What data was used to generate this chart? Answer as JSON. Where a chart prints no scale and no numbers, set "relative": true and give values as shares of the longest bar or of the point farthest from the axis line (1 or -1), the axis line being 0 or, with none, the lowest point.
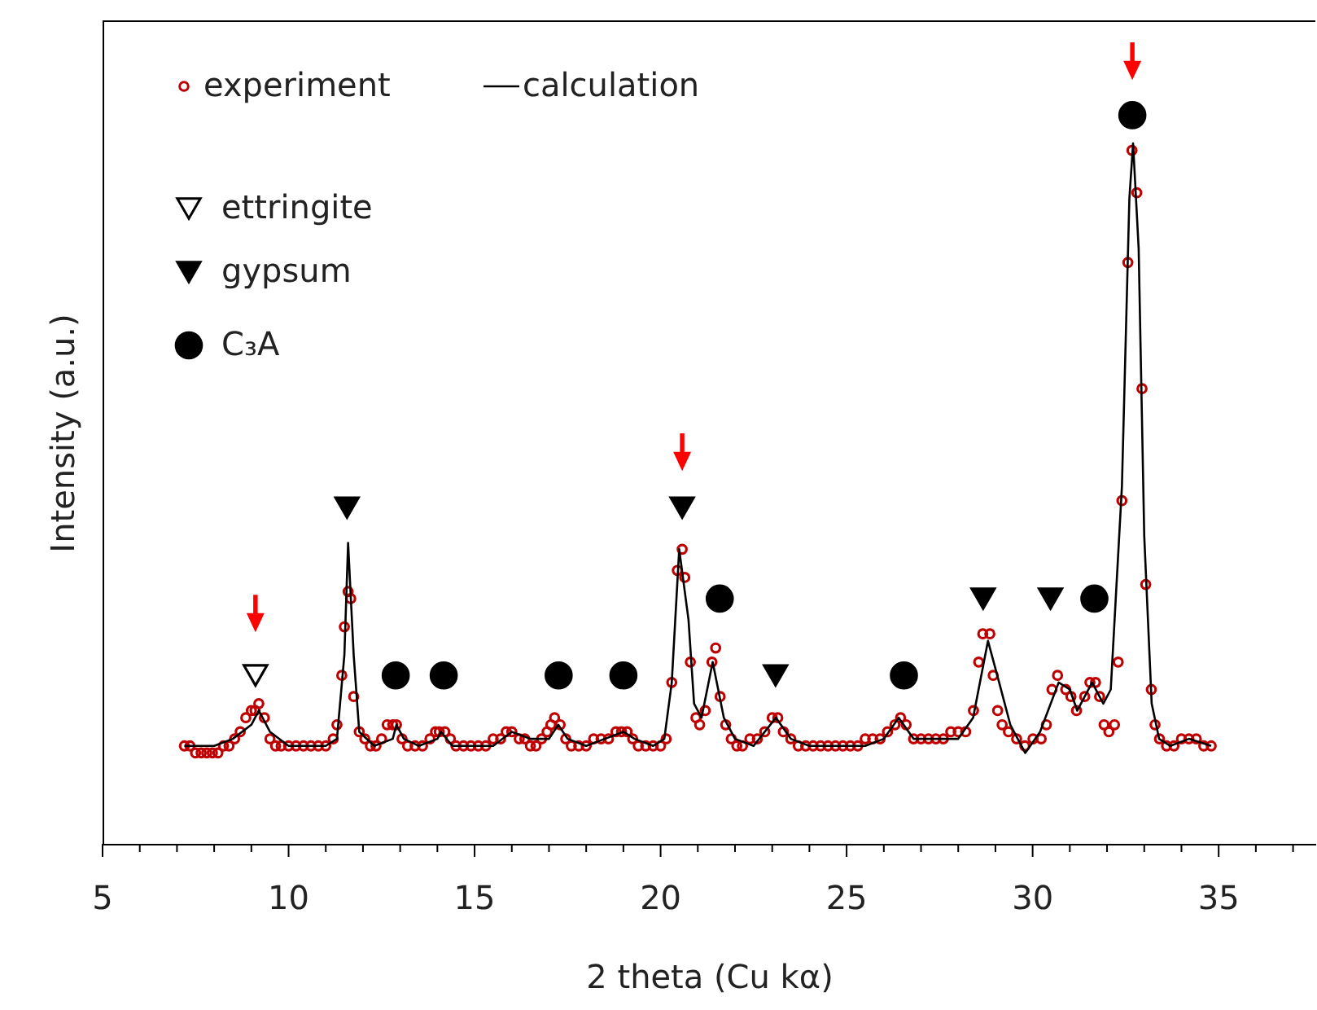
{
  "chart_data": {
    "type": "scatter",
    "relative": true,
    "xlabel": "2 theta (Cu kα)",
    "ylabel": "Intensity (a.u.)",
    "xlim": [
      5,
      37.6
    ],
    "xticks": [
      5,
      {
        "value": 6,
        "label": null
      },
      {
        "value": 7,
        "label": null
      },
      {
        "value": 8,
        "label": null
      },
      {
        "value": 9,
        "label": null
      },
      10,
      {
        "value": 11,
        "label": null
      },
      {
        "value": 12,
        "label": null
      },
      {
        "value": 13,
        "label": null
      },
      {
        "value": 14,
        "label": null
      },
      15,
      {
        "value": 16,
        "label": null
      },
      {
        "value": 17,
        "label": null
      },
      {
        "value": 18,
        "label": null
      },
      {
        "value": 19,
        "label": null
      },
      20,
      {
        "value": 21,
        "label": null
      },
      {
        "value": 22,
        "label": null
      },
      {
        "value": 23,
        "label": null
      },
      {
        "value": 24,
        "label": null
      },
      25,
      {
        "value": 26,
        "label": null
      },
      {
        "value": 27,
        "label": null
      },
      {
        "value": 28,
        "label": null
      },
      {
        "value": 29,
        "label": null
      },
      30,
      {
        "value": 31,
        "label": null
      },
      {
        "value": 32,
        "label": null
      },
      {
        "value": 33,
        "label": null
      },
      {
        "value": 34,
        "label": null
      },
      35,
      {
        "value": 36,
        "label": null
      },
      {
        "value": 37,
        "label": null
      }
    ],
    "tick_labels": "x",
    "grid": false,
    "legend": "top left",
    "series": [
      {
        "name": "experiment",
        "marker": "circle",
        "color": "#c00000",
        "x": [
          7.2,
          7.35,
          7.5,
          7.65,
          7.8,
          7.95,
          8.1,
          8.25,
          8.4,
          8.55,
          8.7,
          8.85,
          9.0,
          9.1,
          9.2,
          9.35,
          9.5,
          9.65,
          9.8,
          10.0,
          10.2,
          10.4,
          10.6,
          10.8,
          11.0,
          11.2,
          11.3,
          11.43,
          11.5,
          11.6,
          11.67,
          11.75,
          11.9,
          12.05,
          12.2,
          12.35,
          12.5,
          12.65,
          12.8,
          12.9,
          13.05,
          13.2,
          13.4,
          13.6,
          13.8,
          13.95,
          14.05,
          14.2,
          14.35,
          14.5,
          14.7,
          14.9,
          15.1,
          15.3,
          15.5,
          15.7,
          15.85,
          16.0,
          16.2,
          16.35,
          16.5,
          16.65,
          16.8,
          16.95,
          17.05,
          17.15,
          17.3,
          17.45,
          17.6,
          17.8,
          18.0,
          18.2,
          18.4,
          18.6,
          18.8,
          18.95,
          19.1,
          19.25,
          19.4,
          19.6,
          19.8,
          20.0,
          20.15,
          20.3,
          20.45,
          20.58,
          20.65,
          20.8,
          20.95,
          21.05,
          21.2,
          21.38,
          21.48,
          21.6,
          21.75,
          21.9,
          22.05,
          22.2,
          22.4,
          22.6,
          22.8,
          23.0,
          23.15,
          23.3,
          23.5,
          23.7,
          23.9,
          24.1,
          24.3,
          24.5,
          24.7,
          24.9,
          25.1,
          25.3,
          25.5,
          25.7,
          25.9,
          26.1,
          26.3,
          26.45,
          26.6,
          26.8,
          27.0,
          27.2,
          27.4,
          27.6,
          27.8,
          28.0,
          28.2,
          28.41,
          28.55,
          28.66,
          28.85,
          28.94,
          29.06,
          29.18,
          29.35,
          29.57,
          29.79,
          30.01,
          30.23,
          30.37,
          30.52,
          30.67,
          30.89,
          31.03,
          31.18,
          31.4,
          31.54,
          31.69,
          31.8,
          31.92,
          32.05,
          32.2,
          32.3,
          32.4,
          32.56,
          32.67,
          32.8,
          32.94,
          33.04,
          33.19,
          33.29,
          33.41,
          33.6,
          33.8,
          34.0,
          34.2,
          34.4,
          34.6,
          34.8
        ],
        "values": [
          0.125,
          0.125,
          0.116,
          0.116,
          0.116,
          0.116,
          0.116,
          0.125,
          0.125,
          0.134,
          0.143,
          0.161,
          0.17,
          0.17,
          0.179,
          0.161,
          0.134,
          0.125,
          0.125,
          0.125,
          0.125,
          0.125,
          0.125,
          0.125,
          0.125,
          0.134,
          0.152,
          0.215,
          0.277,
          0.322,
          0.313,
          0.188,
          0.143,
          0.134,
          0.125,
          0.125,
          0.134,
          0.152,
          0.152,
          0.152,
          0.134,
          0.125,
          0.125,
          0.125,
          0.134,
          0.143,
          0.143,
          0.143,
          0.134,
          0.125,
          0.125,
          0.125,
          0.125,
          0.125,
          0.134,
          0.134,
          0.143,
          0.143,
          0.134,
          0.134,
          0.125,
          0.125,
          0.134,
          0.143,
          0.152,
          0.161,
          0.152,
          0.134,
          0.125,
          0.125,
          0.125,
          0.134,
          0.134,
          0.134,
          0.143,
          0.143,
          0.143,
          0.134,
          0.125,
          0.125,
          0.125,
          0.125,
          0.134,
          0.206,
          0.349,
          0.376,
          0.34,
          0.232,
          0.161,
          0.152,
          0.17,
          0.232,
          0.25,
          0.188,
          0.152,
          0.134,
          0.125,
          0.125,
          0.134,
          0.134,
          0.143,
          0.161,
          0.161,
          0.143,
          0.134,
          0.125,
          0.125,
          0.125,
          0.125,
          0.125,
          0.125,
          0.125,
          0.125,
          0.125,
          0.134,
          0.134,
          0.134,
          0.143,
          0.152,
          0.161,
          0.152,
          0.134,
          0.134,
          0.134,
          0.134,
          0.134,
          0.143,
          0.143,
          0.143,
          0.17,
          0.232,
          0.268,
          0.268,
          0.215,
          0.17,
          0.152,
          0.143,
          0.134,
          0.125,
          0.134,
          0.134,
          0.152,
          0.197,
          0.215,
          0.197,
          0.188,
          0.17,
          0.188,
          0.206,
          0.206,
          0.188,
          0.152,
          0.143,
          0.152,
          0.232,
          0.438,
          0.742,
          0.885,
          0.831,
          0.581,
          0.331,
          0.197,
          0.152,
          0.134,
          0.125,
          0.125,
          0.134,
          0.134,
          0.134,
          0.125,
          0.125
        ]
      },
      {
        "name": "calculation",
        "type": "line",
        "marker": "none",
        "color": "#000000",
        "x": [
          7.2,
          8.0,
          8.5,
          9.0,
          9.2,
          9.5,
          10.0,
          11.0,
          11.3,
          11.5,
          11.6,
          11.75,
          11.9,
          12.3,
          12.8,
          12.9,
          13.1,
          13.5,
          14.0,
          14.1,
          14.4,
          15.0,
          15.5,
          16.0,
          16.5,
          17.0,
          17.25,
          17.5,
          18.0,
          18.5,
          19.0,
          19.3,
          19.8,
          20.1,
          20.3,
          20.5,
          20.75,
          20.9,
          21.1,
          21.4,
          21.7,
          22.0,
          22.5,
          23.1,
          23.5,
          24.0,
          25.0,
          25.5,
          26.0,
          26.4,
          26.8,
          27.5,
          28.0,
          28.4,
          28.8,
          29.1,
          29.4,
          29.8,
          30.2,
          30.7,
          31.0,
          31.2,
          31.6,
          31.9,
          32.1,
          32.4,
          32.6,
          32.7,
          32.85,
          33.0,
          33.2,
          33.4,
          33.7,
          34.2,
          34.8
        ],
        "values": [
          0.125,
          0.125,
          0.134,
          0.152,
          0.17,
          0.143,
          0.125,
          0.125,
          0.134,
          0.241,
          0.384,
          0.241,
          0.143,
          0.125,
          0.134,
          0.152,
          0.134,
          0.125,
          0.134,
          0.143,
          0.125,
          0.125,
          0.125,
          0.143,
          0.134,
          0.134,
          0.152,
          0.134,
          0.125,
          0.134,
          0.143,
          0.134,
          0.125,
          0.134,
          0.206,
          0.376,
          0.286,
          0.179,
          0.161,
          0.232,
          0.161,
          0.134,
          0.125,
          0.161,
          0.134,
          0.125,
          0.125,
          0.125,
          0.134,
          0.161,
          0.134,
          0.134,
          0.134,
          0.161,
          0.259,
          0.206,
          0.152,
          0.116,
          0.143,
          0.206,
          0.197,
          0.17,
          0.206,
          0.179,
          0.197,
          0.456,
          0.823,
          0.894,
          0.76,
          0.393,
          0.179,
          0.134,
          0.125,
          0.134,
          0.125
        ]
      },
      {
        "name": "ettringite",
        "marker": "triangle",
        "color": "#000000",
        "x": [
          9.11
        ],
        "values": [
          0.215
        ]
      },
      {
        "name": "gypsum",
        "marker": "triangle",
        "color": "#000000",
        "x": [
          11.57,
          20.58,
          23.09,
          28.67,
          30.48
        ],
        "values": [
          0.429,
          0.429,
          0.215,
          0.313,
          0.313
        ]
      },
      {
        "name": "C₃A",
        "marker": "circle",
        "color": "#000000",
        "x": [
          12.88,
          14.17,
          17.26,
          19.0,
          21.59,
          26.54,
          31.66,
          32.68
        ],
        "values": [
          0.215,
          0.215,
          0.215,
          0.215,
          0.313,
          0.215,
          0.313,
          0.93
        ]
      },
      {
        "marker": "triangle",
        "color": "#ff0000",
        "x": [
          9.11,
          20.58,
          32.68
        ],
        "values": [
          0.295,
          0.501,
          1.0
        ]
      }
    ]
  }
}
